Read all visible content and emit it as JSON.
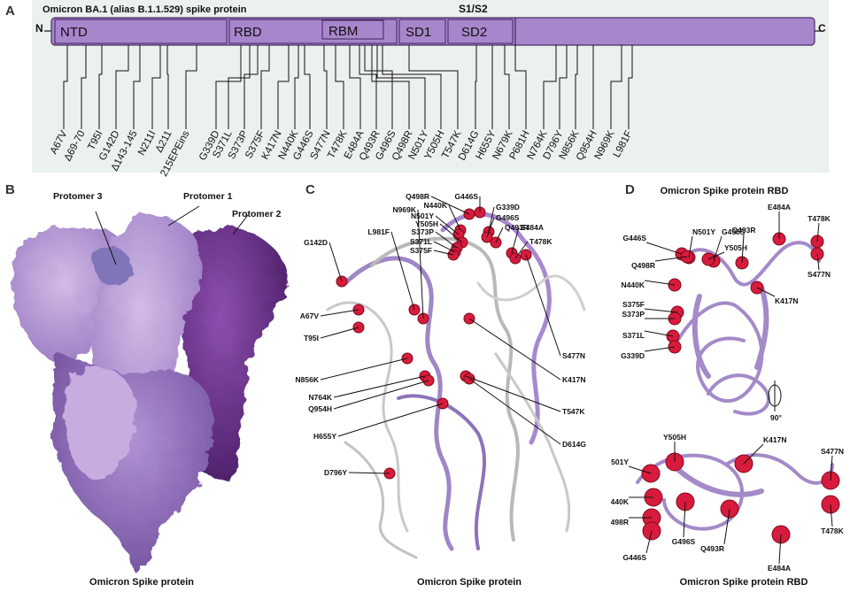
{
  "panels": {
    "a": {
      "letter": "A",
      "title": "Omicron BA.1 (alias B.1.1.529) spike protein",
      "cleavage_label": "S1/S2",
      "n_label": "N",
      "c_label": "C",
      "domains": [
        "NTD",
        "RBD",
        "RBM",
        "SD1",
        "SD2"
      ],
      "mutations": [
        "A67V",
        "Δ69-70",
        "T95I",
        "G142D",
        "Δ143-145",
        "N211I",
        "Δ211",
        "215EPEins",
        "G339D",
        "S371L",
        "S373P",
        "S375F",
        "K417N",
        "N440K",
        "G446S",
        "S477N",
        "T478K",
        "E484A",
        "Q493R",
        "G496S",
        "Q498R",
        "N501Y",
        "Y505H",
        "T547K",
        "D614G",
        "H655Y",
        "N679K",
        "P681H",
        "N764K",
        "D796Y",
        "N856K",
        "Q954H",
        "N969K",
        "L981F"
      ]
    },
    "b": {
      "letter": "B",
      "protomer_labels": [
        "Protomer 3",
        "Protomer 1",
        "Protomer 2"
      ],
      "caption": "Omicron Spike protein"
    },
    "c": {
      "letter": "C",
      "mutation_labels": [
        "N969K",
        "Q498R",
        "G446S",
        "N440K",
        "G339D",
        "N501Y",
        "G496S",
        "Y505H",
        "Q493R",
        "S373P",
        "E484A",
        "S371L",
        "T478K",
        "S375F",
        "G142D",
        "L981F",
        "A67V",
        "T95I",
        "S477N",
        "K417N",
        "N856K",
        "T547K",
        "N764K",
        "Q954H",
        "D614G",
        "H655Y",
        "D796Y"
      ],
      "caption": "Omicron Spike protein"
    },
    "d": {
      "letter": "D",
      "title": "Omicron Spike protein RBD",
      "top_labels": [
        "E484A",
        "T478K",
        "G446S",
        "N501Y",
        "G496S",
        "Q493R",
        "Y505H",
        "Q498R",
        "S477N",
        "N440K",
        "K417N",
        "S375F",
        "S373P",
        "S371L",
        "G339D"
      ],
      "rotation_label": "90°",
      "bottom_labels": [
        "Y505H",
        "K417N",
        "S477N",
        "N501Y",
        "N440K",
        "Q498R",
        "G496S",
        "Q493R",
        "T478K",
        "G446S",
        "E484A"
      ],
      "caption": "Omicron Spike protein RBD"
    }
  },
  "colors": {
    "panel_a_bg": "#ebf1ed",
    "domain_fill": "#a886cc",
    "protomer_light": "#b99bd6",
    "protomer_mid": "#8f6bb8",
    "protomer_dark": "#5e2a7e",
    "mutation_sphere": "#d81b3c"
  }
}
